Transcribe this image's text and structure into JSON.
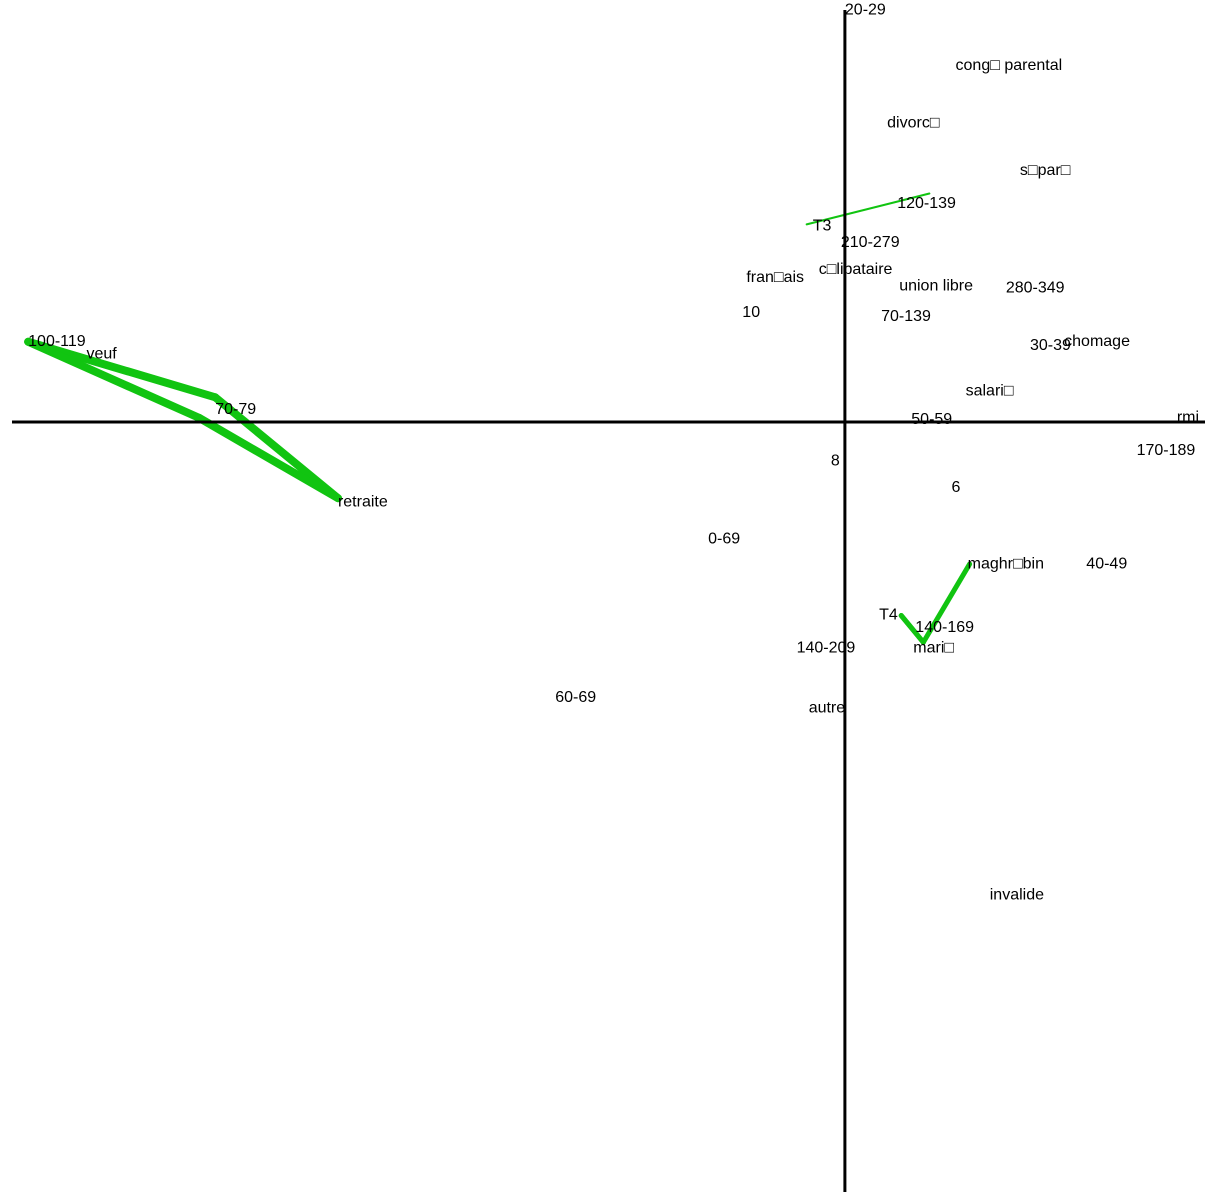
{
  "chart_data": {
    "type": "scatter",
    "title": "",
    "xlabel": "",
    "ylabel": "",
    "xlim": [
      -4.2,
      1.8
    ],
    "ylim": [
      -3.75,
      2.05
    ],
    "grid": false,
    "legend": "none",
    "colors": {
      "axis": "#000000",
      "label": "#000000",
      "edge": "#11c411"
    },
    "points": [
      {
        "label": "20-29",
        "x": 0.0,
        "y": 2.0
      },
      {
        "label": "cong□ parental",
        "x": 0.55,
        "y": 1.73
      },
      {
        "label": "divorc□",
        "x": 0.21,
        "y": 1.45
      },
      {
        "label": "s□par□",
        "x": 0.87,
        "y": 1.22
      },
      {
        "label": "120-139",
        "x": 0.26,
        "y": 1.06
      },
      {
        "label": "T3",
        "x": -0.16,
        "y": 0.95
      },
      {
        "label": "210-279",
        "x": -0.02,
        "y": 0.87
      },
      {
        "label": "fran□ais",
        "x": -0.49,
        "y": 0.7
      },
      {
        "label": "c□libataire",
        "x": -0.13,
        "y": 0.74
      },
      {
        "label": "union libre",
        "x": 0.27,
        "y": 0.66
      },
      {
        "label": "280-349",
        "x": 0.8,
        "y": 0.65
      },
      {
        "label": "10",
        "x": -0.51,
        "y": 0.53
      },
      {
        "label": "70-139",
        "x": 0.18,
        "y": 0.51
      },
      {
        "label": "100-119",
        "x": -4.06,
        "y": 0.39
      },
      {
        "label": "veuf",
        "x": -3.77,
        "y": 0.33
      },
      {
        "label": "30-39",
        "x": 0.92,
        "y": 0.37
      },
      {
        "label": "chomage",
        "x": 1.09,
        "y": 0.39
      },
      {
        "label": "salari□",
        "x": 0.6,
        "y": 0.15
      },
      {
        "label": "70-79",
        "x": -3.13,
        "y": 0.06
      },
      {
        "label": "50-59",
        "x": 0.33,
        "y": 0.01
      },
      {
        "label": "rmi",
        "x": 1.65,
        "y": 0.02
      },
      {
        "label": "170-189",
        "x": 1.45,
        "y": -0.14
      },
      {
        "label": "8",
        "x": -0.07,
        "y": -0.19
      },
      {
        "label": "6",
        "x": 0.53,
        "y": -0.32
      },
      {
        "label": "retraite",
        "x": -2.52,
        "y": -0.39
      },
      {
        "label": "0-69",
        "x": -0.68,
        "y": -0.57
      },
      {
        "label": "maghr□bin",
        "x": 0.61,
        "y": -0.69
      },
      {
        "label": "40-49",
        "x": 1.2,
        "y": -0.69
      },
      {
        "label": "T4",
        "x": 0.17,
        "y": -0.94
      },
      {
        "label": "140-169",
        "x": 0.35,
        "y": -1.0
      },
      {
        "label": "140-209",
        "x": -0.24,
        "y": -1.1
      },
      {
        "label": "mari□",
        "x": 0.34,
        "y": -1.1
      },
      {
        "label": "60-69",
        "x": -1.44,
        "y": -1.34
      },
      {
        "label": "autre",
        "x": -0.18,
        "y": -1.39
      },
      {
        "label": "invalide",
        "x": 0.72,
        "y": -2.3
      }
    ],
    "edges": [
      {
        "x1": -4.06,
        "y1": 0.39,
        "x2": -3.13,
        "y2": 0.12,
        "width": 8
      },
      {
        "x1": -3.13,
        "y1": 0.12,
        "x2": -2.52,
        "y2": -0.37,
        "width": 8
      },
      {
        "x1": -2.52,
        "y1": -0.37,
        "x2": -3.21,
        "y2": 0.02,
        "width": 8
      },
      {
        "x1": -3.21,
        "y1": 0.02,
        "x2": -4.06,
        "y2": 0.39,
        "width": 8
      },
      {
        "x1": -0.19,
        "y1": 0.96,
        "x2": 0.42,
        "y2": 1.11,
        "width": 2
      },
      {
        "x1": 0.28,
        "y1": -0.94,
        "x2": 0.39,
        "y2": -1.07,
        "width": 5
      },
      {
        "x1": 0.39,
        "y1": -1.07,
        "x2": 0.62,
        "y2": -0.69,
        "width": 5
      },
      {
        "x1": 0.28,
        "y1": -0.94,
        "x2": 0.39,
        "y2": -1.07,
        "width": 5
      }
    ]
  }
}
